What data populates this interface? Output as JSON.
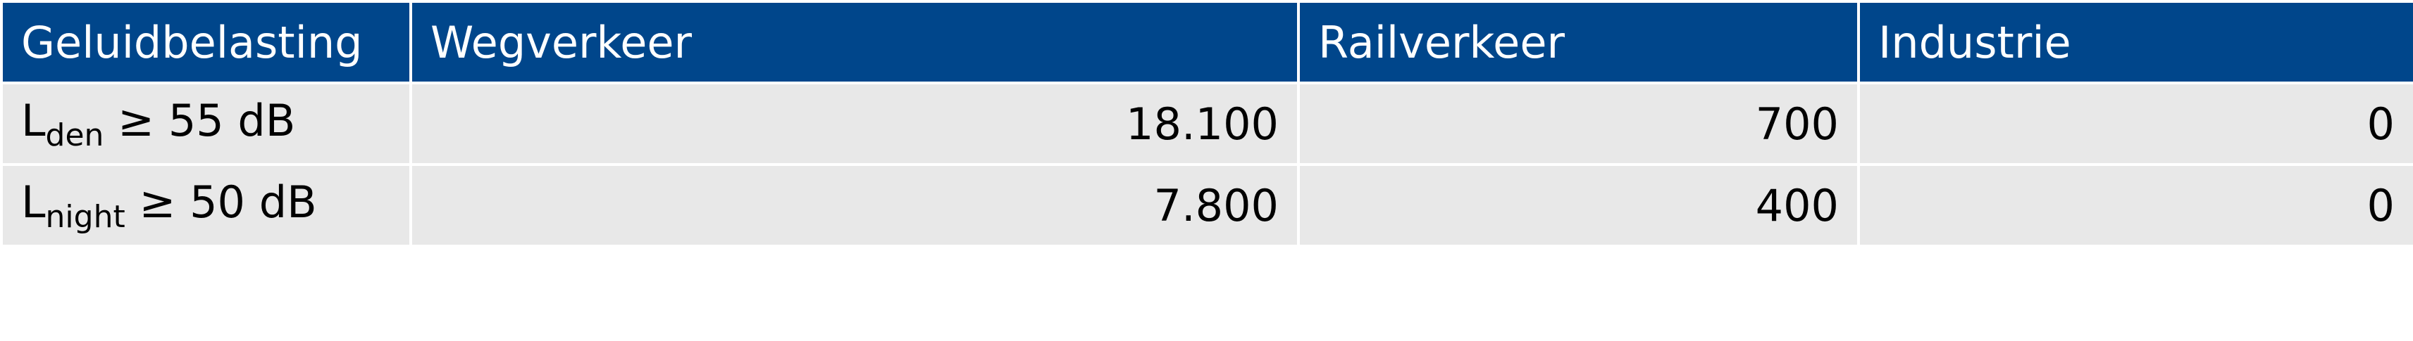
{
  "table": {
    "header": [
      "Geluidbelasting",
      "Wegverkeer",
      "Railverkeer",
      "Industrie"
    ],
    "rows": [
      {
        "label": {
          "main": "L",
          "sub": "den",
          "rest": "≥ 55 dB"
        },
        "cells": [
          "18.100",
          "700",
          "0"
        ]
      },
      {
        "label": {
          "main": "L",
          "sub": "night",
          "rest": "≥ 50 dB"
        },
        "cells": [
          "7.800",
          "400",
          "0"
        ]
      }
    ]
  }
}
